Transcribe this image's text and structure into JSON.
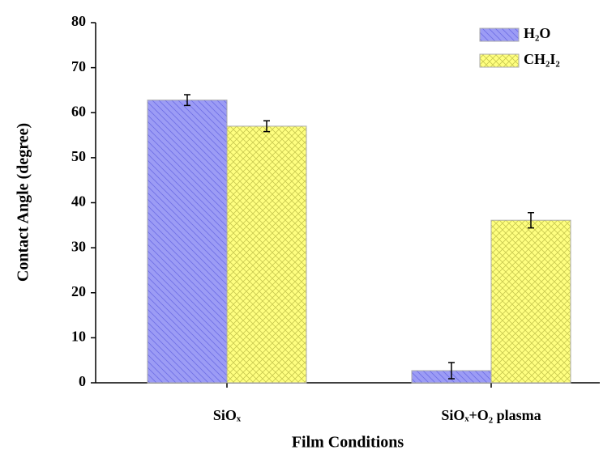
{
  "chart_data": {
    "type": "bar",
    "x_label": "Film Conditions",
    "y_label": "Contact Angle (degree)",
    "categories": [
      "SiOₓ",
      "SiOₓ+O₂ plasma"
    ],
    "series": [
      {
        "name": "H₂O",
        "color": "#9c9cf5",
        "values": [
          62.8,
          2.7
        ],
        "errors": [
          1.2,
          1.8
        ]
      },
      {
        "name": "CH₂I₂",
        "color": "#ffff80",
        "values": [
          57,
          36.1
        ],
        "errors": [
          1.2,
          1.7
        ]
      }
    ],
    "ylim": [
      0,
      80
    ],
    "yticks": [
      0,
      10,
      20,
      30,
      40,
      50,
      60,
      70,
      80
    ],
    "legend": "upper right"
  }
}
